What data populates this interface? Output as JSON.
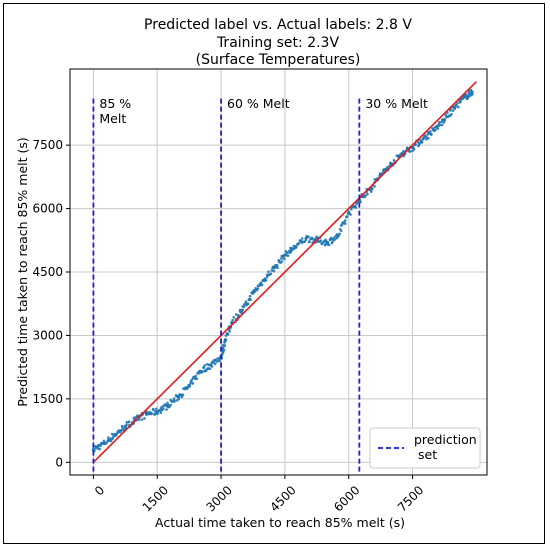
{
  "chart_data": {
    "type": "scatter",
    "title_lines": [
      "Predicted label vs. Actual labels: 2.8 V",
      "Training set: 2.3V",
      "(Surface Temperatures)"
    ],
    "xlabel": "Actual time taken to reach 85% melt (s)",
    "ylabel": "Predicted time taken to reach 85% melt (s)",
    "xlim": [
      -550,
      9250
    ],
    "ylim": [
      -300,
      9300
    ],
    "xticks": [
      0,
      1500,
      3000,
      4500,
      6000,
      7500
    ],
    "xtick_labels": [
      "0",
      "1500",
      "3000",
      "4500",
      "6000",
      "7500"
    ],
    "yticks": [
      0,
      1500,
      3000,
      4500,
      6000,
      7500
    ],
    "ytick_labels": [
      "0",
      "1500",
      "3000",
      "4500",
      "6000",
      "7500"
    ],
    "grid": true,
    "reference_line": {
      "x": [
        0,
        9000
      ],
      "y": [
        0,
        9000
      ],
      "color": "#e31a1c"
    },
    "vlines": [
      {
        "x": 0,
        "label": "85 %\nMelt"
      },
      {
        "x": 3000,
        "label": "60 % Melt"
      },
      {
        "x": 6250,
        "label": "30 % Melt"
      }
    ],
    "vline_color": "#1f1fcc",
    "legend": {
      "placement": "bottom-right",
      "entries": [
        {
          "label": "prediction\nset",
          "style": "dashed",
          "color": "#1f1fcc"
        }
      ]
    },
    "series": [
      {
        "color": "#1f77b4",
        "points": [
          [
            0,
            300
          ],
          [
            250,
            450
          ],
          [
            500,
            650
          ],
          [
            750,
            850
          ],
          [
            1000,
            1000
          ],
          [
            1250,
            1150
          ],
          [
            1500,
            1200
          ],
          [
            1750,
            1350
          ],
          [
            2000,
            1550
          ],
          [
            2250,
            1800
          ],
          [
            2500,
            2150
          ],
          [
            2750,
            2300
          ],
          [
            3000,
            2500
          ],
          [
            3100,
            2900
          ],
          [
            3250,
            3300
          ],
          [
            3500,
            3600
          ],
          [
            3750,
            4000
          ],
          [
            4000,
            4300
          ],
          [
            4250,
            4600
          ],
          [
            4500,
            4900
          ],
          [
            4750,
            5100
          ],
          [
            5000,
            5300
          ],
          [
            5250,
            5250
          ],
          [
            5500,
            5200
          ],
          [
            5750,
            5350
          ],
          [
            6000,
            5900
          ],
          [
            6250,
            6200
          ],
          [
            6500,
            6450
          ],
          [
            6750,
            6800
          ],
          [
            7000,
            7050
          ],
          [
            7250,
            7300
          ],
          [
            7500,
            7450
          ],
          [
            7750,
            7650
          ],
          [
            8000,
            7850
          ],
          [
            8250,
            8100
          ],
          [
            8500,
            8400
          ],
          [
            8750,
            8650
          ],
          [
            8900,
            8750
          ]
        ]
      }
    ]
  }
}
